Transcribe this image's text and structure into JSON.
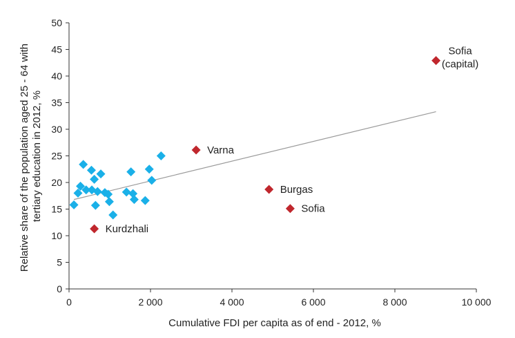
{
  "chart_data": {
    "type": "scatter",
    "title": "",
    "xlabel": "Cumulative FDI per capita as of end - 2012, %",
    "ylabel_lines": [
      "Relative share of the population aged 25 - 64 with",
      "tertiary education in 2012, %"
    ],
    "xlim": [
      0,
      10000
    ],
    "ylim": [
      0,
      50
    ],
    "x_ticks": [
      0,
      2000,
      4000,
      6000,
      8000,
      10000
    ],
    "x_tick_labels": [
      "0",
      "2 000",
      "4 000",
      "6 000",
      "8 000",
      "10 000"
    ],
    "y_ticks": [
      0,
      5,
      10,
      15,
      20,
      25,
      30,
      35,
      40,
      45,
      50
    ],
    "y_tick_labels": [
      "0",
      "5",
      "10",
      "15",
      "20",
      "25",
      "30",
      "35",
      "40",
      "45",
      "50"
    ],
    "grid": false,
    "colors": {
      "regular": "#1ab0e8",
      "highlight": "#c0272d",
      "trend": "#9a9a9a"
    },
    "series": [
      {
        "values": [
          {
            "x": 120,
            "y": 15.8
          },
          {
            "x": 220,
            "y": 18.0
          },
          {
            "x": 280,
            "y": 19.3
          },
          {
            "x": 350,
            "y": 23.4
          },
          {
            "x": 420,
            "y": 18.6
          },
          {
            "x": 550,
            "y": 22.3
          },
          {
            "x": 560,
            "y": 18.6
          },
          {
            "x": 620,
            "y": 20.6
          },
          {
            "x": 650,
            "y": 15.7
          },
          {
            "x": 700,
            "y": 18.3
          },
          {
            "x": 780,
            "y": 21.6
          },
          {
            "x": 880,
            "y": 18.1
          },
          {
            "x": 960,
            "y": 17.8
          },
          {
            "x": 990,
            "y": 16.4
          },
          {
            "x": 1080,
            "y": 13.9
          },
          {
            "x": 1410,
            "y": 18.2
          },
          {
            "x": 1520,
            "y": 22.0
          },
          {
            "x": 1570,
            "y": 17.9
          },
          {
            "x": 1600,
            "y": 16.8
          },
          {
            "x": 1870,
            "y": 16.6
          },
          {
            "x": 1970,
            "y": 22.5
          },
          {
            "x": 2030,
            "y": 20.4
          },
          {
            "x": 2260,
            "y": 25.0
          }
        ]
      },
      {
        "values": [
          {
            "x": 620,
            "y": 11.3,
            "label": "Kurdzhali"
          },
          {
            "x": 3120,
            "y": 26.1,
            "label": "Varna"
          },
          {
            "x": 4910,
            "y": 18.7,
            "label": "Burgas"
          },
          {
            "x": 5430,
            "y": 15.1,
            "label": "Sofia"
          },
          {
            "x": 9010,
            "y": 42.9,
            "label": "Sofia (capital)"
          }
        ]
      }
    ],
    "trendline": {
      "x": [
        120,
        9010
      ],
      "y": [
        16.8,
        33.3
      ]
    }
  }
}
